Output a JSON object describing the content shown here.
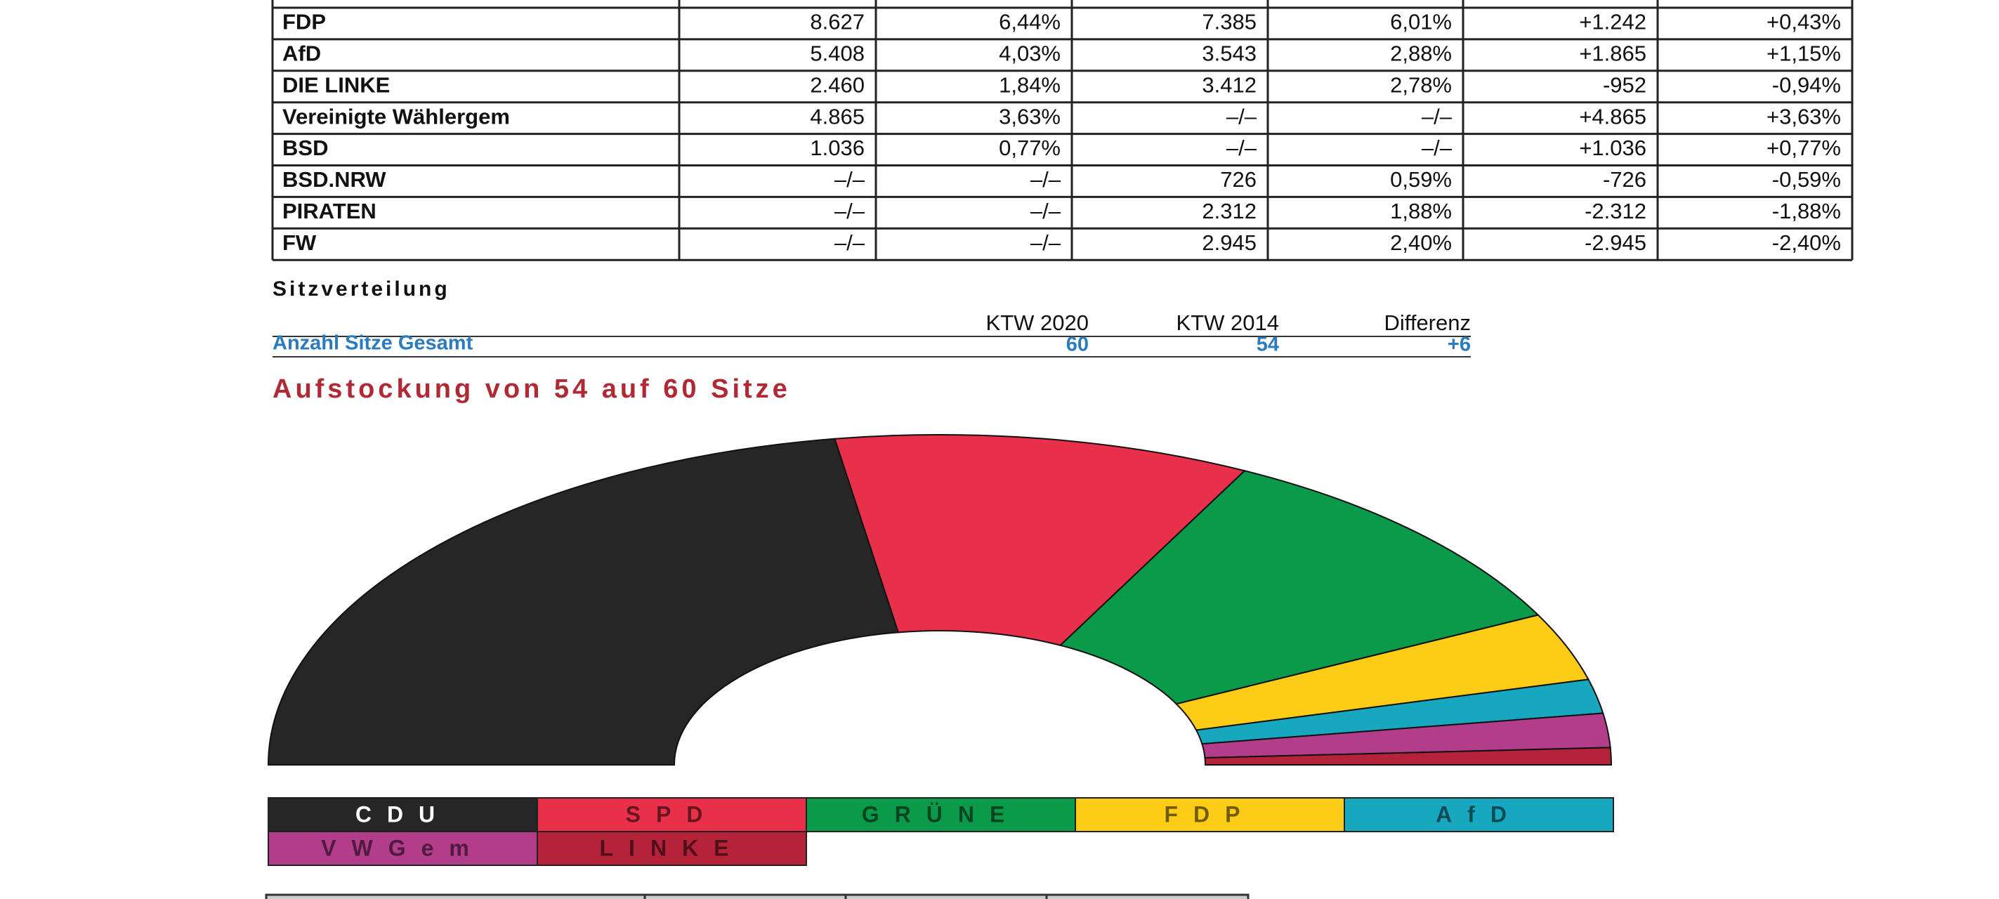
{
  "results_table": {
    "rows": [
      [
        "FDP",
        "8.627",
        "6,44%",
        "7.385",
        "6,01%",
        "+1.242",
        "+0,43%"
      ],
      [
        "AfD",
        "5.408",
        "4,03%",
        "3.543",
        "2,88%",
        "+1.865",
        "+1,15%"
      ],
      [
        "DIE LINKE",
        "2.460",
        "1,84%",
        "3.412",
        "2,78%",
        "-952",
        "-0,94%"
      ],
      [
        "Vereinigte Wählergem",
        "4.865",
        "3,63%",
        "–/–",
        "–/–",
        "+4.865",
        "+3,63%"
      ],
      [
        "BSD",
        "1.036",
        "0,77%",
        "–/–",
        "–/–",
        "+1.036",
        "+0,77%"
      ],
      [
        "BSD.NRW",
        "–/–",
        "–/–",
        "726",
        "0,59%",
        "-726",
        "-0,59%"
      ],
      [
        "PIRATEN",
        "–/–",
        "–/–",
        "2.312",
        "1,88%",
        "-2.312",
        "-1,88%"
      ],
      [
        "FW",
        "–/–",
        "–/–",
        "2.945",
        "2,40%",
        "-2.945",
        "-2,40%"
      ]
    ]
  },
  "seat_section": {
    "title": "Sitzverteilung",
    "headers": [
      "KTW 2020",
      "KTW 2014",
      "Differenz"
    ],
    "row": {
      "label": "Anzahl Sitze Gesamt",
      "values": [
        "60",
        "54",
        "+6"
      ]
    }
  },
  "chart_data": {
    "type": "pie",
    "title": "Aufstockung von 54 auf 60 Sitze",
    "categories": [
      "CDU",
      "SPD",
      "GRÜNE",
      "FDP",
      "AfD",
      "VWGem",
      "LINKE"
    ],
    "values": [
      27,
      12,
      12,
      4,
      2,
      2,
      1
    ],
    "colors": [
      "#262626",
      "#e8304a",
      "#0a9a4a",
      "#fdcc16",
      "#17a8bf",
      "#b23d8a",
      "#b5233a"
    ]
  }
}
